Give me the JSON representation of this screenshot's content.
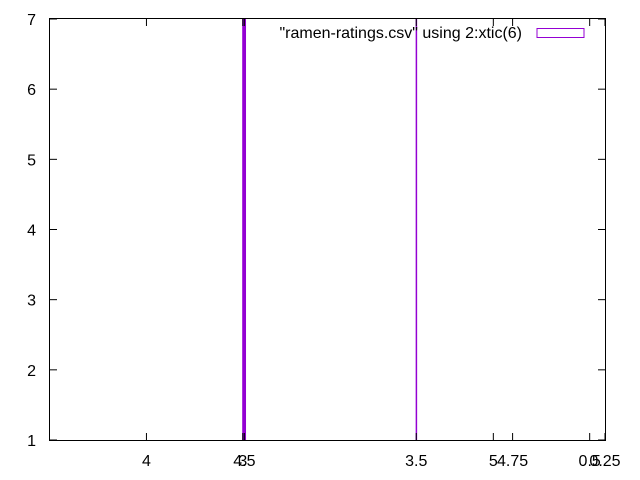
{
  "chart_data": {
    "type": "bar",
    "title": "",
    "xlabel": "",
    "ylabel": "",
    "ylim": [
      1,
      7
    ],
    "yticks": [
      1,
      2,
      3,
      4,
      5,
      6,
      7
    ],
    "xtick_labels": [
      "4",
      "3",
      "4.5",
      "3.5",
      "5",
      "4.75",
      "0.5",
      "0.25"
    ],
    "x_index_range": [
      -0.5,
      2879.5
    ],
    "xtick_indices": [
      500,
      1000,
      1008,
      1900,
      2300,
      2400,
      2800,
      4400
    ],
    "bars": [
      {
        "index": 1000,
        "value": 7
      },
      {
        "index": 1003,
        "value": 7
      },
      {
        "index": 1006,
        "value": 7
      },
      {
        "index": 1009,
        "value": 7
      },
      {
        "index": 1012,
        "value": 7
      },
      {
        "index": 1900,
        "value": 7
      }
    ],
    "legend": {
      "label": "\"ramen-ratings.csv\" using 2:xtic(6)",
      "placement": "top-right"
    },
    "grid": false,
    "colors": {
      "series": "#9400d3",
      "axis": "#000000",
      "background": "#ffffff"
    }
  }
}
